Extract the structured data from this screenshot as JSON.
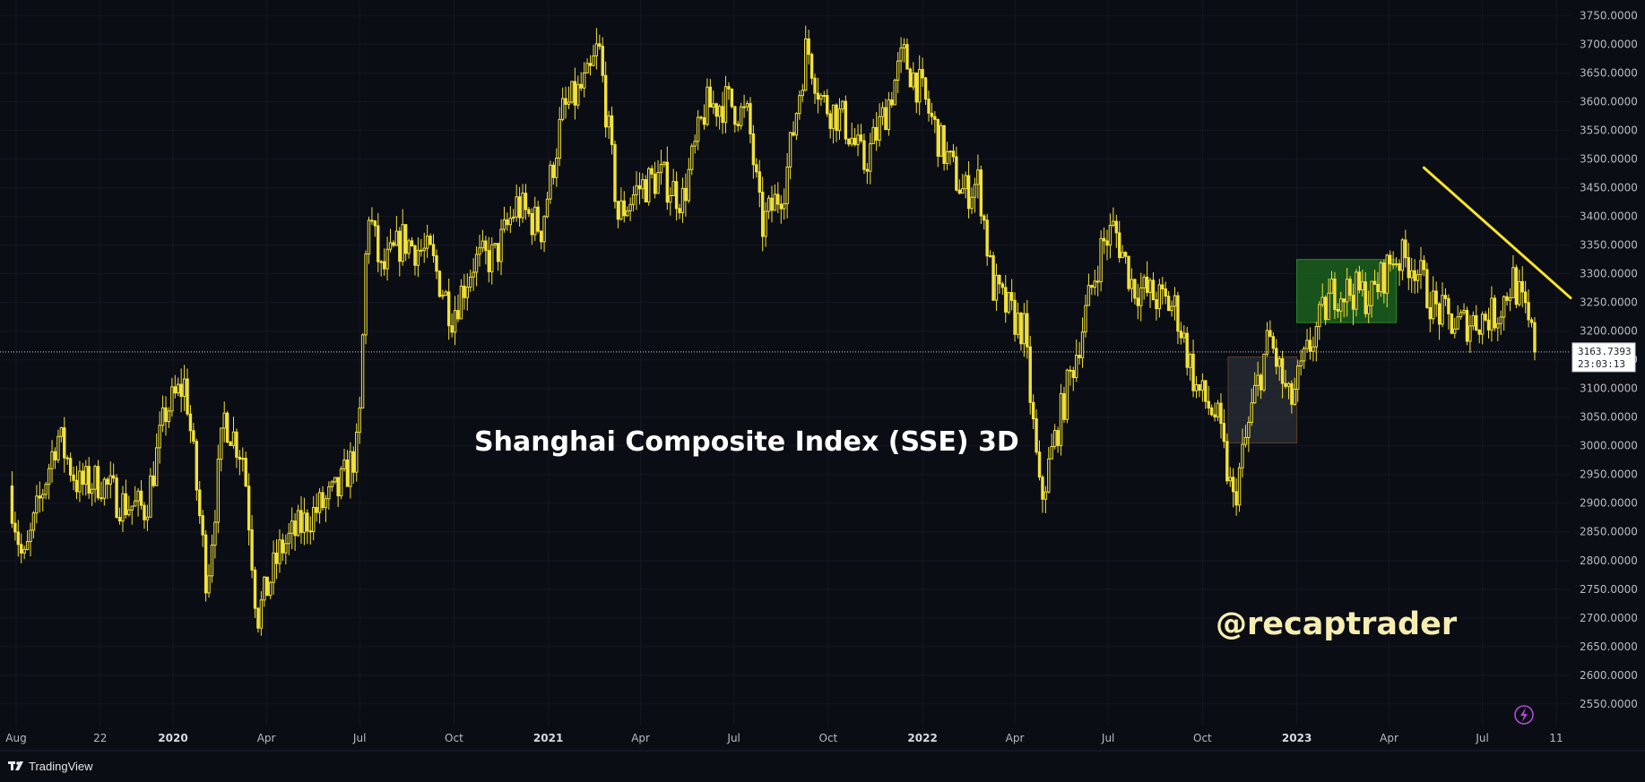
{
  "chart_data": {
    "type": "candlestick",
    "title": "Shanghai Composite Index (SSE) 3D",
    "watermark": "@recaptrader",
    "brand": "TradingView",
    "brand_icon": "tradingview-logo-icon",
    "background_color": "#0b0d14",
    "candle_color": "#f2e23a",
    "ylim": [
      2520,
      3765
    ],
    "y_ticks": [
      2550,
      2600,
      2650,
      2700,
      2750,
      2800,
      2850,
      2900,
      2950,
      3000,
      3050,
      3100,
      3150,
      3200,
      3250,
      3300,
      3350,
      3400,
      3450,
      3500,
      3550,
      3600,
      3650,
      3700,
      3750
    ],
    "y_tick_labels": [
      "2550.0000",
      "2600.0000",
      "2650.0000",
      "2700.0000",
      "2750.0000",
      "2800.0000",
      "2850.0000",
      "2900.0000",
      "2950.0000",
      "3000.0000",
      "3050.0000",
      "3100.0000",
      "3150.0000",
      "3200.0000",
      "3250.0000",
      "3300.0000",
      "3350.0000",
      "3400.0000",
      "3450.0000",
      "3500.0000",
      "3550.0000",
      "3600.0000",
      "3650.0000",
      "3700.0000",
      "3750.0000"
    ],
    "x_range": [
      "2019-07-25",
      "2023-09-25"
    ],
    "x_ticks": [
      {
        "label": "Aug",
        "date": "2019-08-01",
        "bold": false
      },
      {
        "label": "22",
        "date": "2019-10-22",
        "bold": false
      },
      {
        "label": "2020",
        "date": "2020-01-01",
        "bold": true
      },
      {
        "label": "Apr",
        "date": "2020-04-01",
        "bold": false
      },
      {
        "label": "Jul",
        "date": "2020-07-01",
        "bold": false
      },
      {
        "label": "Oct",
        "date": "2020-10-01",
        "bold": false
      },
      {
        "label": "2021",
        "date": "2021-01-01",
        "bold": true
      },
      {
        "label": "Apr",
        "date": "2021-04-01",
        "bold": false
      },
      {
        "label": "Jul",
        "date": "2021-07-01",
        "bold": false
      },
      {
        "label": "Oct",
        "date": "2021-10-01",
        "bold": false
      },
      {
        "label": "2022",
        "date": "2022-01-01",
        "bold": true
      },
      {
        "label": "Apr",
        "date": "2022-04-01",
        "bold": false
      },
      {
        "label": "Jul",
        "date": "2022-07-01",
        "bold": false
      },
      {
        "label": "Oct",
        "date": "2022-10-01",
        "bold": false
      },
      {
        "label": "2023",
        "date": "2023-01-01",
        "bold": true
      },
      {
        "label": "Apr",
        "date": "2023-04-01",
        "bold": false
      },
      {
        "label": "Jul",
        "date": "2023-07-01",
        "bold": false
      },
      {
        "label": "11",
        "date": "2023-09-11",
        "bold": false
      }
    ],
    "last_price": 3163.7393,
    "last_price_label": "3163.7393",
    "countdown_label": "23:03:13",
    "closes": [
      {
        "date": "2019-07-25",
        "close": 2930
      },
      {
        "date": "2019-08-08",
        "close": 2790
      },
      {
        "date": "2019-08-22",
        "close": 2890
      },
      {
        "date": "2019-09-10",
        "close": 3020
      },
      {
        "date": "2019-10-01",
        "close": 2930
      },
      {
        "date": "2019-10-22",
        "close": 2940
      },
      {
        "date": "2019-11-12",
        "close": 2900
      },
      {
        "date": "2019-12-05",
        "close": 2890
      },
      {
        "date": "2019-12-25",
        "close": 3060
      },
      {
        "date": "2020-01-13",
        "close": 3110
      },
      {
        "date": "2020-02-03",
        "close": 2760
      },
      {
        "date": "2020-02-20",
        "close": 3050
      },
      {
        "date": "2020-03-10",
        "close": 2980
      },
      {
        "date": "2020-03-23",
        "close": 2700
      },
      {
        "date": "2020-04-15",
        "close": 2820
      },
      {
        "date": "2020-05-15",
        "close": 2880
      },
      {
        "date": "2020-06-10",
        "close": 2920
      },
      {
        "date": "2020-06-30",
        "close": 3000
      },
      {
        "date": "2020-07-09",
        "close": 3420
      },
      {
        "date": "2020-07-22",
        "close": 3300
      },
      {
        "date": "2020-08-12",
        "close": 3360
      },
      {
        "date": "2020-09-08",
        "close": 3330
      },
      {
        "date": "2020-09-29",
        "close": 3230
      },
      {
        "date": "2020-10-20",
        "close": 3320
      },
      {
        "date": "2020-11-10",
        "close": 3330
      },
      {
        "date": "2020-12-01",
        "close": 3420
      },
      {
        "date": "2020-12-25",
        "close": 3380
      },
      {
        "date": "2021-01-15",
        "close": 3580
      },
      {
        "date": "2021-02-10",
        "close": 3640
      },
      {
        "date": "2021-02-19",
        "close": 3700
      },
      {
        "date": "2021-03-10",
        "close": 3400
      },
      {
        "date": "2021-03-30",
        "close": 3450
      },
      {
        "date": "2021-04-20",
        "close": 3470
      },
      {
        "date": "2021-05-12",
        "close": 3430
      },
      {
        "date": "2021-06-03",
        "close": 3590
      },
      {
        "date": "2021-06-25",
        "close": 3600
      },
      {
        "date": "2021-07-15",
        "close": 3570
      },
      {
        "date": "2021-07-28",
        "close": 3380
      },
      {
        "date": "2021-08-20",
        "close": 3460
      },
      {
        "date": "2021-09-10",
        "close": 3700
      },
      {
        "date": "2021-09-25",
        "close": 3600
      },
      {
        "date": "2021-10-15",
        "close": 3570
      },
      {
        "date": "2021-11-05",
        "close": 3490
      },
      {
        "date": "2021-11-25",
        "close": 3580
      },
      {
        "date": "2021-12-13",
        "close": 3680
      },
      {
        "date": "2021-12-30",
        "close": 3620
      },
      {
        "date": "2022-01-20",
        "close": 3520
      },
      {
        "date": "2022-02-10",
        "close": 3440
      },
      {
        "date": "2022-02-25",
        "close": 3460
      },
      {
        "date": "2022-03-10",
        "close": 3280
      },
      {
        "date": "2022-03-20",
        "close": 3250
      },
      {
        "date": "2022-04-10",
        "close": 3200
      },
      {
        "date": "2022-04-26",
        "close": 2900
      },
      {
        "date": "2022-05-15",
        "close": 3050
      },
      {
        "date": "2022-06-05",
        "close": 3200
      },
      {
        "date": "2022-06-25",
        "close": 3350
      },
      {
        "date": "2022-07-07",
        "close": 3380
      },
      {
        "date": "2022-07-25",
        "close": 3280
      },
      {
        "date": "2022-08-15",
        "close": 3260
      },
      {
        "date": "2022-09-05",
        "close": 3240
      },
      {
        "date": "2022-09-25",
        "close": 3100
      },
      {
        "date": "2022-10-15",
        "close": 3050
      },
      {
        "date": "2022-10-31",
        "close": 2900
      },
      {
        "date": "2022-11-20",
        "close": 3080
      },
      {
        "date": "2022-12-05",
        "close": 3190
      },
      {
        "date": "2022-12-25",
        "close": 3070
      },
      {
        "date": "2023-01-15",
        "close": 3180
      },
      {
        "date": "2023-02-05",
        "close": 3270
      },
      {
        "date": "2023-02-25",
        "close": 3270
      },
      {
        "date": "2023-03-15",
        "close": 3260
      },
      {
        "date": "2023-04-05",
        "close": 3330
      },
      {
        "date": "2023-04-25",
        "close": 3320
      },
      {
        "date": "2023-05-15",
        "close": 3240
      },
      {
        "date": "2023-06-05",
        "close": 3210
      },
      {
        "date": "2023-06-25",
        "close": 3220
      },
      {
        "date": "2023-07-15",
        "close": 3230
      },
      {
        "date": "2023-07-31",
        "close": 3290
      },
      {
        "date": "2023-08-15",
        "close": 3210
      },
      {
        "date": "2023-08-22",
        "close": 3163.7393
      }
    ],
    "annotations": {
      "zones": [
        {
          "name": "dark-consolidation-zone",
          "x_start": "2022-10-26",
          "x_end": "2023-01-01",
          "y_min": 3005,
          "y_max": 3155,
          "fill": "#2a2d36",
          "stroke": "#5a3d2a"
        },
        {
          "name": "green-consolidation-zone",
          "x_start": "2023-01-01",
          "x_end": "2023-04-08",
          "y_min": 3215,
          "y_max": 3325,
          "fill": "#1e6b1e",
          "stroke": "#2c8a2c"
        }
      ],
      "trendline": {
        "name": "descending-trendline",
        "start": {
          "date": "2023-05-05",
          "value": 3485
        },
        "end": {
          "date": "2023-09-25",
          "value": 3258
        },
        "color": "#f7e330"
      }
    }
  }
}
